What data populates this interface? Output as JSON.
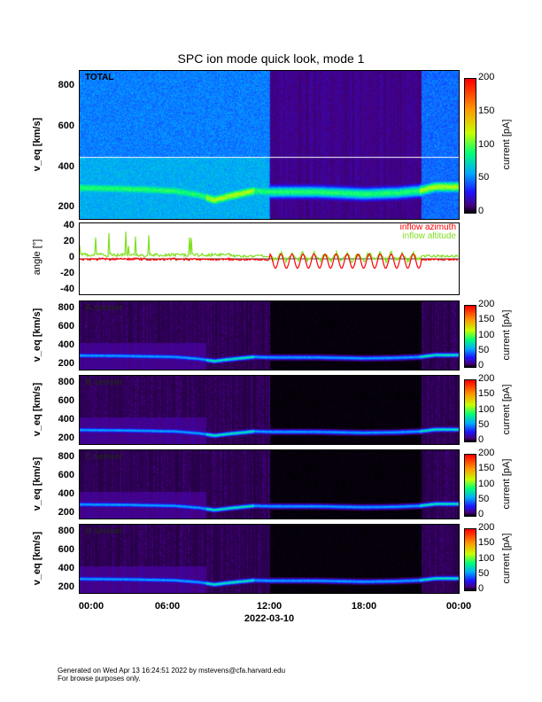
{
  "title": "SPC ion mode quick look, mode 1",
  "chart_data": {
    "type": "heatmap",
    "x_ticks": [
      "00:00",
      "06:00",
      "12:00",
      "18:00",
      "00:00"
    ],
    "xlabel": "2022-03-10",
    "xlim_hours": [
      0,
      24
    ],
    "velocity_axis": {
      "label": "v_eq [km/s]",
      "ticks": [
        200,
        400,
        600,
        800
      ],
      "ylim": [
        145,
        875
      ]
    },
    "total_axis_ticks": [
      200,
      400,
      600,
      800
    ],
    "colorbar": {
      "label": "current [pA]",
      "ticks": [
        0,
        50,
        100,
        150,
        200
      ],
      "range": [
        0,
        200
      ]
    },
    "panels": [
      {
        "name": "TOTAL"
      },
      {
        "name": "A sensor"
      },
      {
        "name": "B sensor"
      },
      {
        "name": "C sensor"
      },
      {
        "name": "D sensor"
      }
    ],
    "band_speed_km_s": {
      "hours": [
        0,
        3,
        6,
        7.5,
        8.5,
        9.5,
        11,
        12,
        15,
        18,
        20,
        21.5,
        22.5,
        24
      ],
      "speed": [
        300,
        295,
        285,
        265,
        240,
        260,
        285,
        280,
        280,
        270,
        275,
        285,
        305,
        305
      ]
    },
    "data_gap_hours": [
      12,
      21.6
    ],
    "angle": {
      "ylabel": "angle [°]",
      "ticks": [
        -40,
        -20,
        0,
        20,
        40
      ],
      "ylim": [
        -45,
        45
      ],
      "series": [
        {
          "name": "inflow azimuth",
          "color": "#ff0000"
        },
        {
          "name": "inflow altitude",
          "color": "#80e020"
        }
      ]
    }
  },
  "footer": {
    "line1": "Generated on Wed Apr 13 16:24:51 2022 by mstevens@cfa.harvard.edu",
    "line2": "For browse purposes only."
  }
}
